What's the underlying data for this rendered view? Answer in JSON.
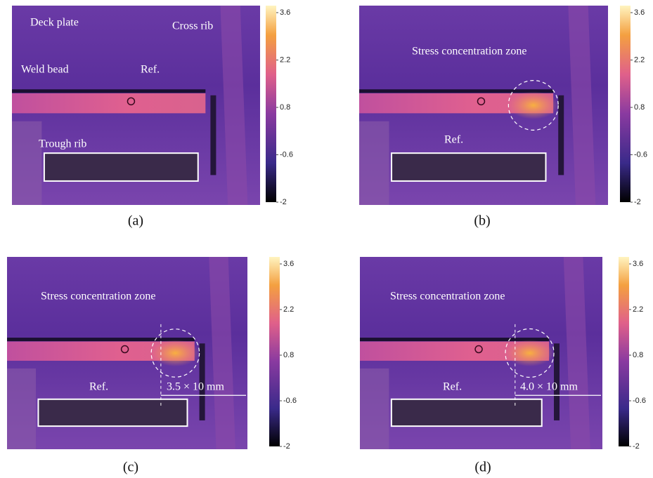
{
  "panels": [
    {
      "caption": "(a)",
      "annotations": [
        "Deck plate",
        "Cross rib",
        "Ref.",
        "Weld bead",
        "Trough rib"
      ],
      "colorbar": {
        "ticks": [
          3.6,
          2.2,
          0.8,
          -0.6,
          -2
        ]
      }
    },
    {
      "caption": "(b)",
      "annotations": [
        "Stress concentration zone",
        "Ref."
      ],
      "colorbar": {
        "ticks": [
          3.6,
          2.2,
          0.8,
          -0.6,
          -2
        ]
      }
    },
    {
      "caption": "(c)",
      "annotations": [
        "Stress concentration zone",
        "Ref.",
        "3.5 × 10 mm"
      ],
      "colorbar": {
        "ticks": [
          3.6,
          2.2,
          0.8,
          -0.6,
          -2
        ]
      }
    },
    {
      "caption": "(d)",
      "annotations": [
        "Stress concentration zone",
        "Ref.",
        "4.0 × 10 mm"
      ],
      "colorbar": {
        "ticks": [
          3.6,
          2.2,
          0.8,
          -0.6,
          -2
        ]
      }
    }
  ]
}
